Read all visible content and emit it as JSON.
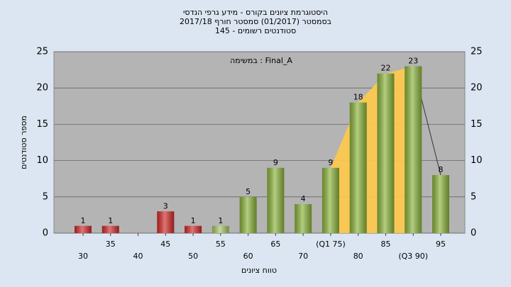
{
  "chart_data": {
    "type": "bar",
    "title": [
      "היסטוגרמת ציונים בקורס - מידע גרפי הנדסי",
      "בסמסטר  (01/2017)  סמסטר חורף 2017/18",
      "סטודנטים רשומים - 145"
    ],
    "annotation": "במשימה : Final_A",
    "x_label": "טווח ציונים",
    "y_label": "מספר סטודנטים",
    "categories": [
      "30",
      "35",
      "40",
      "45",
      "50",
      "55",
      "60",
      "65",
      "70",
      "(Q1 75)",
      "80",
      "85",
      "(Q3 90)",
      "95"
    ],
    "values": [
      1,
      1,
      0,
      3,
      1,
      1,
      5,
      9,
      4,
      9,
      18,
      22,
      23,
      8
    ],
    "colors": [
      "#d42a2a",
      "#d42a2a",
      "#d42a2a",
      "#d42a2a",
      "#d42a2a",
      "#a8c86a",
      "#8cb43c",
      "#8cb43c",
      "#8cb43c",
      "#8cb43c",
      "#8cb43c",
      "#8cb43c",
      "#8cb43c",
      "#8cb43c"
    ],
    "ylim": [
      0,
      25
    ],
    "yticks": [
      0,
      5,
      10,
      15,
      20,
      25
    ],
    "grid": true
  }
}
